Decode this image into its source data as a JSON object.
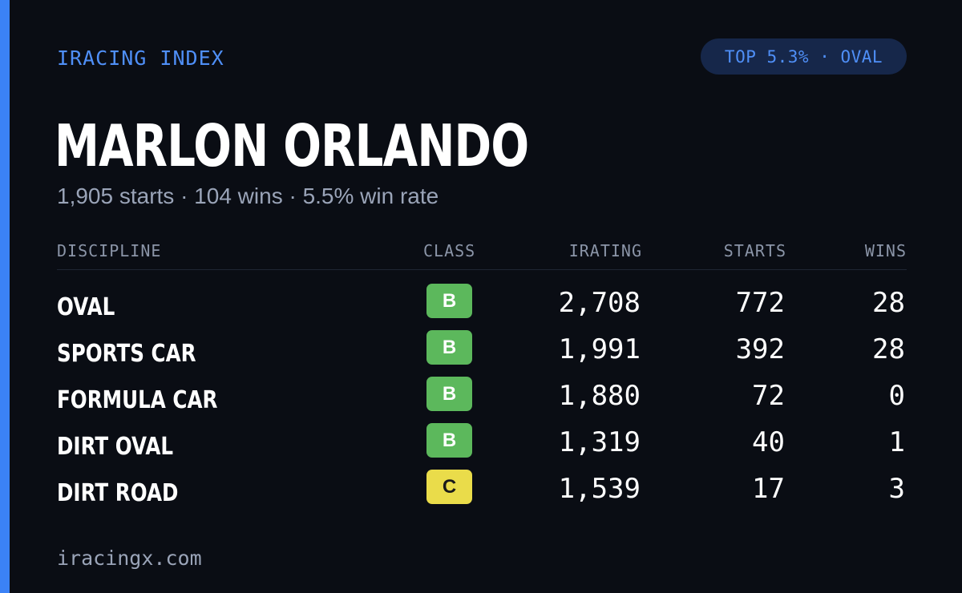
{
  "brand": {
    "label": "IRACING INDEX",
    "accent_color": "#3b82f6"
  },
  "rank_badge": {
    "label": "TOP 5.3% · OVAL"
  },
  "driver": {
    "name": "MARLON ORLANDO",
    "summary": "1,905 starts · 104 wins · 5.5% win rate"
  },
  "table": {
    "headers": {
      "discipline": "DISCIPLINE",
      "class": "CLASS",
      "irating": "IRATING",
      "starts": "STARTS",
      "wins": "WINS"
    },
    "rows": [
      {
        "discipline": "OVAL",
        "class": "B",
        "class_color": "#5cb85c",
        "class_text_color": "#ffffff",
        "irating": "2,708",
        "starts": "772",
        "wins": "28"
      },
      {
        "discipline": "SPORTS CAR",
        "class": "B",
        "class_color": "#5cb85c",
        "class_text_color": "#ffffff",
        "irating": "1,991",
        "starts": "392",
        "wins": "28"
      },
      {
        "discipline": "FORMULA CAR",
        "class": "B",
        "class_color": "#5cb85c",
        "class_text_color": "#ffffff",
        "irating": "1,880",
        "starts": "72",
        "wins": "0"
      },
      {
        "discipline": "DIRT OVAL",
        "class": "B",
        "class_color": "#5cb85c",
        "class_text_color": "#ffffff",
        "irating": "1,319",
        "starts": "40",
        "wins": "1"
      },
      {
        "discipline": "DIRT ROAD",
        "class": "C",
        "class_color": "#eadc4a",
        "class_text_color": "#1a1a1a",
        "irating": "1,539",
        "starts": "17",
        "wins": "3"
      }
    ]
  },
  "footer": {
    "site": "iracingx.com"
  }
}
